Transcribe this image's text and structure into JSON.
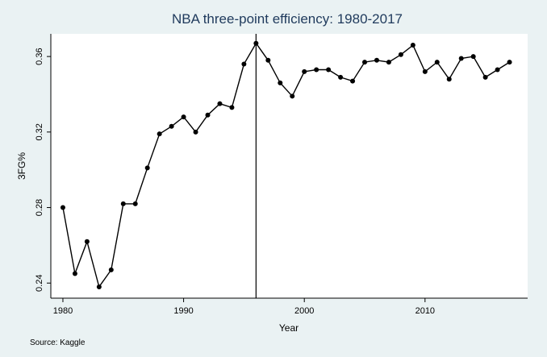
{
  "chart_data": {
    "type": "line",
    "title": "NBA three-point efficiency: 1980-2017",
    "xlabel": "Year",
    "ylabel": "3FG%",
    "source": "Source: Kaggle",
    "xlim": [
      1979,
      2018.5
    ],
    "ylim": [
      0.232,
      0.372
    ],
    "x_ticks": [
      1980,
      1990,
      2000,
      2010
    ],
    "y_ticks": [
      0.24,
      0.28,
      0.32,
      0.36
    ],
    "y_tick_labels": [
      "0.24",
      "0.28",
      "0.32",
      "0.36"
    ],
    "vertical_line_x": 1996,
    "grid": false,
    "series": [
      {
        "x": [
          1980,
          1981,
          1982,
          1983,
          1984,
          1985,
          1986,
          1987,
          1988,
          1989,
          1990,
          1991,
          1992,
          1993,
          1994,
          1995,
          1996,
          1997,
          1998,
          1999,
          2000,
          2001,
          2002,
          2003,
          2004,
          2005,
          2006,
          2007,
          2008,
          2009,
          2010,
          2011,
          2012,
          2013,
          2014,
          2015,
          2016,
          2017
        ],
        "values": [
          0.28,
          0.245,
          0.262,
          0.238,
          0.247,
          0.282,
          0.282,
          0.301,
          0.319,
          0.323,
          0.328,
          0.32,
          0.329,
          0.335,
          0.333,
          0.356,
          0.367,
          0.358,
          0.346,
          0.339,
          0.352,
          0.353,
          0.353,
          0.349,
          0.347,
          0.357,
          0.358,
          0.357,
          0.361,
          0.366,
          0.352,
          0.357,
          0.348,
          0.359,
          0.36,
          0.349,
          0.353,
          0.357
        ]
      }
    ]
  },
  "colors": {
    "background": "#eaf2f3",
    "plot_background": "#ffffff",
    "title": "#1f3a5c",
    "line": "#000000"
  }
}
